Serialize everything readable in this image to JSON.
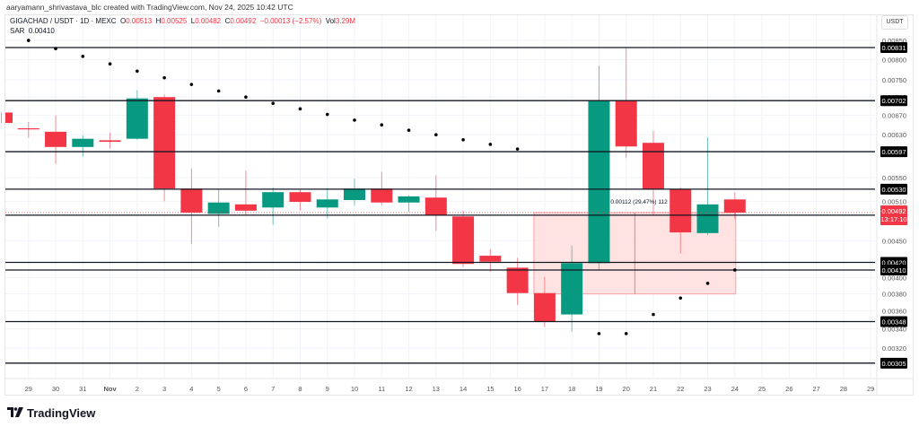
{
  "header": {
    "attribution": "aaryamann_shrivastava_blc created with TradingView.com, Nov 24, 2025 10:42 UTC"
  },
  "legend": {
    "symbol": "GIGACHAD / USDT · 1D · MEXC",
    "o_label": "O",
    "o_value": "0.00513",
    "h_label": "H",
    "h_value": "0.00525",
    "l_label": "L",
    "l_value": "0.00482",
    "c_label": "C",
    "c_value": "0.00492",
    "change": "−0.00013 (−2.57%)",
    "vol_label": "Vol",
    "vol_value": "3.29M",
    "sar_label": "SAR",
    "sar_value": "0.00410"
  },
  "price_axis": {
    "currency": "USDT",
    "ticks": [
      "0.00850",
      "0.00800",
      "0.00750",
      "0.00710",
      "0.00670",
      "0.00630",
      "0.00550",
      "0.00510",
      "0.00450",
      "0.00400",
      "0.00380",
      "0.00360",
      "0.00340",
      "0.00320"
    ],
    "current_price": "0.00492",
    "countdown": "13:17:10"
  },
  "measure_label": "0.00112 (29.47%) 112",
  "footer": {
    "brand": "TradingView"
  },
  "colors": {
    "up": "#089981",
    "down": "#f23645",
    "line": "#131722",
    "zone": "#ffdede"
  },
  "chart_data": {
    "type": "candlestick",
    "title": "GIGACHAD / USDT · 1D · MEXC",
    "scale": "log",
    "ylim": [
      0.00296,
      0.0087
    ],
    "x_ticks": [
      "29",
      "30",
      "31",
      "Nov",
      "2",
      "3",
      "4",
      "5",
      "6",
      "7",
      "8",
      "9",
      "10",
      "11",
      "12",
      "13",
      "14",
      "15",
      "16",
      "17",
      "18",
      "19",
      "20",
      "21",
      "22",
      "23",
      "24",
      "25",
      "26",
      "27",
      "28",
      "29"
    ],
    "candles": [
      {
        "date": "Oct 28",
        "o": 0.00676,
        "h": 0.00676,
        "l": 0.00654,
        "c": 0.00654
      },
      {
        "date": "Oct 29",
        "o": 0.00643,
        "h": 0.00656,
        "l": 0.00624,
        "c": 0.00641
      },
      {
        "date": "Oct 30",
        "o": 0.00636,
        "h": 0.0067,
        "l": 0.00574,
        "c": 0.00606
      },
      {
        "date": "Oct 31",
        "o": 0.00606,
        "h": 0.00629,
        "l": 0.00588,
        "c": 0.00622
      },
      {
        "date": "Nov 1",
        "o": 0.00619,
        "h": 0.00634,
        "l": 0.00603,
        "c": 0.00616
      },
      {
        "date": "Nov 2",
        "o": 0.00622,
        "h": 0.00726,
        "l": 0.0062,
        "c": 0.00707
      },
      {
        "date": "Nov 3",
        "o": 0.0071,
        "h": 0.00716,
        "l": 0.0051,
        "c": 0.00531
      },
      {
        "date": "Nov 4",
        "o": 0.00531,
        "h": 0.00566,
        "l": 0.00445,
        "c": 0.00492
      },
      {
        "date": "Nov 5",
        "o": 0.0049,
        "h": 0.0053,
        "l": 0.0047,
        "c": 0.00508
      },
      {
        "date": "Nov 6",
        "o": 0.00505,
        "h": 0.00562,
        "l": 0.00488,
        "c": 0.00495
      },
      {
        "date": "Nov 7",
        "o": 0.005,
        "h": 0.00533,
        "l": 0.00473,
        "c": 0.00525
      },
      {
        "date": "Nov 8",
        "o": 0.00525,
        "h": 0.0053,
        "l": 0.00495,
        "c": 0.00509
      },
      {
        "date": "Nov 9",
        "o": 0.005,
        "h": 0.00532,
        "l": 0.00483,
        "c": 0.00513
      },
      {
        "date": "Nov 10",
        "o": 0.00512,
        "h": 0.00548,
        "l": 0.00503,
        "c": 0.00531
      },
      {
        "date": "Nov 11",
        "o": 0.00531,
        "h": 0.0056,
        "l": 0.00504,
        "c": 0.00508
      },
      {
        "date": "Nov 12",
        "o": 0.00508,
        "h": 0.0052,
        "l": 0.00493,
        "c": 0.00518
      },
      {
        "date": "Nov 13",
        "o": 0.00516,
        "h": 0.00554,
        "l": 0.00464,
        "c": 0.00488
      },
      {
        "date": "Nov 14",
        "o": 0.00486,
        "h": 0.00495,
        "l": 0.00414,
        "c": 0.00418
      },
      {
        "date": "Nov 15",
        "o": 0.00429,
        "h": 0.00438,
        "l": 0.00408,
        "c": 0.00421
      },
      {
        "date": "Nov 16",
        "o": 0.00413,
        "h": 0.00426,
        "l": 0.00367,
        "c": 0.00381
      },
      {
        "date": "Nov 17",
        "o": 0.00381,
        "h": 0.00401,
        "l": 0.00342,
        "c": 0.00348
      },
      {
        "date": "Nov 18",
        "o": 0.00356,
        "h": 0.00443,
        "l": 0.00337,
        "c": 0.00419
      },
      {
        "date": "Nov 19",
        "o": 0.00419,
        "h": 0.00785,
        "l": 0.0041,
        "c": 0.00702
      },
      {
        "date": "Nov 20",
        "o": 0.00702,
        "h": 0.00831,
        "l": 0.00585,
        "c": 0.00607
      },
      {
        "date": "Nov 21",
        "o": 0.00614,
        "h": 0.00638,
        "l": 0.00488,
        "c": 0.0053
      },
      {
        "date": "Nov 22",
        "o": 0.0053,
        "h": 0.00533,
        "l": 0.00432,
        "c": 0.00462
      },
      {
        "date": "Nov 23",
        "o": 0.00461,
        "h": 0.00625,
        "l": 0.00458,
        "c": 0.00505
      },
      {
        "date": "Nov 24",
        "o": 0.00513,
        "h": 0.00525,
        "l": 0.00482,
        "c": 0.00492
      }
    ],
    "sar": [
      0.0085,
      0.00828,
      0.00808,
      0.00789,
      0.00771,
      0.00755,
      0.00739,
      0.00724,
      0.0071,
      0.00696,
      0.00684,
      0.00672,
      0.0066,
      0.0065,
      0.00639,
      0.0063,
      0.0062,
      0.00611,
      0.00602,
      null,
      null,
      0.00335,
      0.00335,
      0.00356,
      0.00375,
      0.00393,
      0.0041
    ],
    "sar_start_index": 1,
    "horizontal_levels": [
      0.00831,
      0.00702,
      0.00597,
      0.0053,
      0.00488,
      0.0042,
      0.0041,
      0.00348,
      0.00305
    ],
    "measure_zone": {
      "from_price": 0.0038,
      "to_price": 0.00492,
      "from_date": "Nov 17",
      "to_date": "Nov 24",
      "delta": "0.00112",
      "pct": "29.47%",
      "bars": "112"
    }
  }
}
